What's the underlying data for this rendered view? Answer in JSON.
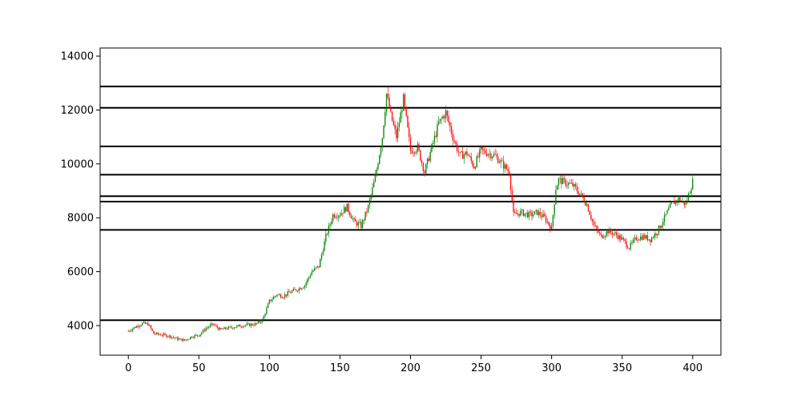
{
  "chart_data": {
    "type": "candlestick",
    "title": "",
    "xlabel": "",
    "ylabel": "",
    "xlim": [
      -20,
      420
    ],
    "ylim": [
      2900,
      14300
    ],
    "x_ticks": [
      0,
      50,
      100,
      150,
      200,
      250,
      300,
      350,
      400
    ],
    "y_ticks": [
      4000,
      6000,
      8000,
      10000,
      12000,
      14000
    ],
    "grid": false,
    "colors": {
      "up": "#008000",
      "down": "#ff0000",
      "level_line": "#000000"
    },
    "horizontal_levels": [
      4200,
      7550,
      8600,
      8800,
      9600,
      10650,
      12080,
      12870
    ],
    "close_anchors": [
      [
        0,
        3800
      ],
      [
        5,
        3950
      ],
      [
        10,
        4080
      ],
      [
        14,
        4050
      ],
      [
        18,
        3700
      ],
      [
        25,
        3650
      ],
      [
        30,
        3600
      ],
      [
        35,
        3500
      ],
      [
        40,
        3450
      ],
      [
        45,
        3600
      ],
      [
        50,
        3650
      ],
      [
        55,
        3900
      ],
      [
        60,
        4050
      ],
      [
        65,
        3850
      ],
      [
        70,
        3900
      ],
      [
        80,
        4000
      ],
      [
        90,
        4050
      ],
      [
        95,
        4200
      ],
      [
        100,
        4900
      ],
      [
        105,
        5150
      ],
      [
        110,
        5100
      ],
      [
        115,
        5250
      ],
      [
        120,
        5350
      ],
      [
        125,
        5500
      ],
      [
        130,
        6000
      ],
      [
        135,
        6200
      ],
      [
        140,
        7300
      ],
      [
        145,
        8100
      ],
      [
        150,
        8150
      ],
      [
        155,
        8400
      ],
      [
        160,
        7850
      ],
      [
        165,
        7700
      ],
      [
        170,
        8400
      ],
      [
        175,
        9500
      ],
      [
        180,
        11000
      ],
      [
        183,
        12600
      ],
      [
        186,
        11800
      ],
      [
        190,
        11000
      ],
      [
        195,
        12400
      ],
      [
        200,
        10500
      ],
      [
        205,
        10600
      ],
      [
        210,
        9700
      ],
      [
        215,
        10600
      ],
      [
        220,
        11500
      ],
      [
        225,
        11900
      ],
      [
        230,
        11000
      ],
      [
        235,
        10300
      ],
      [
        240,
        10400
      ],
      [
        245,
        9900
      ],
      [
        250,
        10500
      ],
      [
        255,
        10400
      ],
      [
        260,
        10300
      ],
      [
        265,
        10000
      ],
      [
        270,
        9700
      ],
      [
        273,
        8100
      ],
      [
        278,
        8200
      ],
      [
        285,
        8100
      ],
      [
        290,
        8200
      ],
      [
        295,
        8000
      ],
      [
        300,
        7600
      ],
      [
        303,
        9100
      ],
      [
        305,
        9400
      ],
      [
        310,
        9300
      ],
      [
        315,
        9200
      ],
      [
        320,
        8900
      ],
      [
        325,
        8500
      ],
      [
        330,
        7700
      ],
      [
        335,
        7300
      ],
      [
        340,
        7500
      ],
      [
        345,
        7400
      ],
      [
        350,
        7200
      ],
      [
        355,
        6900
      ],
      [
        360,
        7250
      ],
      [
        365,
        7300
      ],
      [
        370,
        7200
      ],
      [
        375,
        7500
      ],
      [
        380,
        8000
      ],
      [
        385,
        8500
      ],
      [
        390,
        8700
      ],
      [
        395,
        8500
      ],
      [
        400,
        9350
      ]
    ]
  }
}
